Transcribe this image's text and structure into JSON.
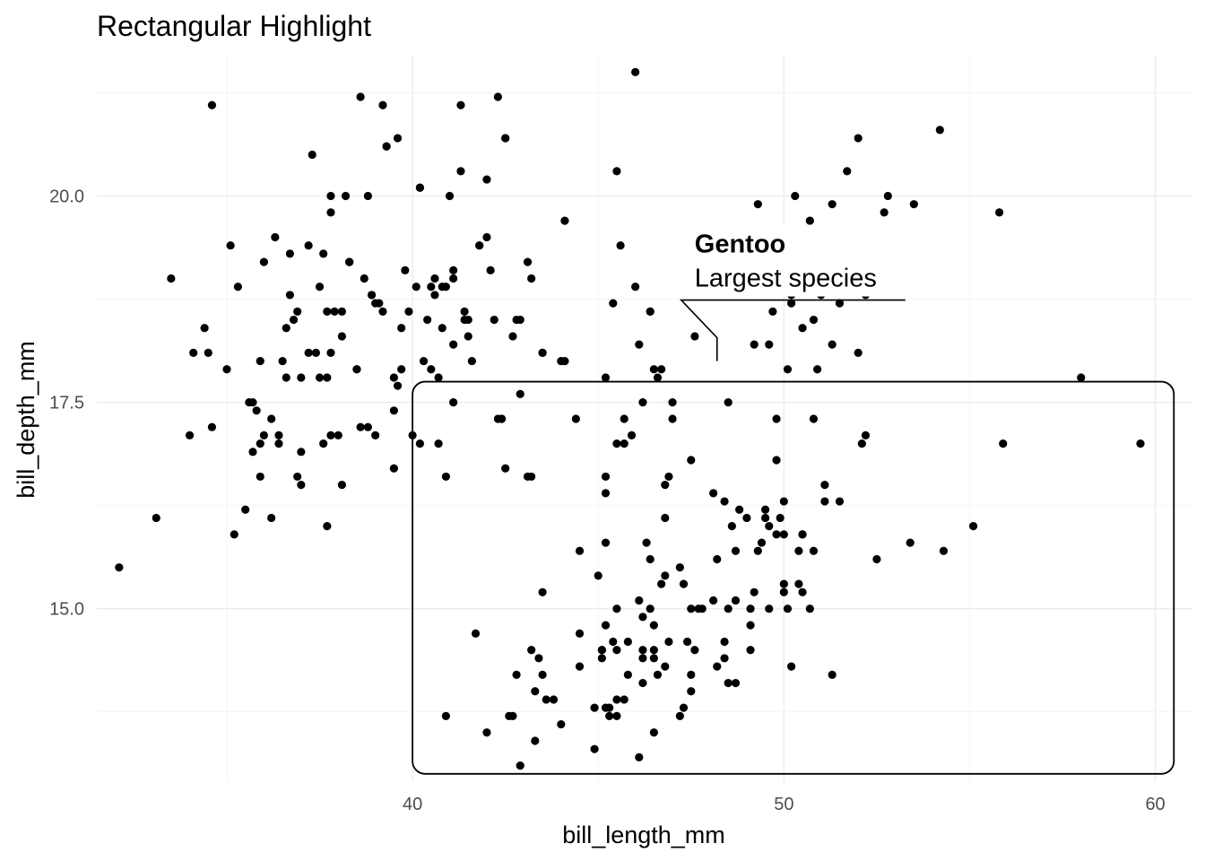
{
  "chart_data": {
    "type": "scatter",
    "title": "Rectangular Highlight",
    "xlabel": "bill_length_mm",
    "ylabel": "bill_depth_mm",
    "xlim": [
      31.5,
      61
    ],
    "ylim": [
      12.9,
      21.7
    ],
    "x_ticks": [
      40,
      50,
      60
    ],
    "x_tick_labels": [
      "40",
      "50",
      "60"
    ],
    "y_ticks": [
      15.0,
      17.5,
      20.0
    ],
    "y_tick_labels": [
      "15.0",
      "17.5",
      "20.0"
    ],
    "grid": true,
    "highlight_rect": {
      "x": [
        40.0,
        60.5
      ],
      "y": [
        13.0,
        17.75
      ]
    },
    "annotation": {
      "title": "Gentoo",
      "label": "Largest species",
      "point": {
        "x": 48.2,
        "y": 18.0
      }
    },
    "points": [
      [
        32.1,
        15.5
      ],
      [
        33.1,
        16.1
      ],
      [
        33.5,
        19.0
      ],
      [
        34.0,
        17.1
      ],
      [
        34.1,
        18.1
      ],
      [
        34.4,
        18.4
      ],
      [
        34.5,
        18.1
      ],
      [
        34.6,
        21.1
      ],
      [
        34.6,
        17.2
      ],
      [
        35.0,
        17.9
      ],
      [
        35.1,
        19.4
      ],
      [
        35.3,
        18.9
      ],
      [
        35.2,
        15.9
      ],
      [
        35.5,
        16.2
      ],
      [
        35.6,
        17.5
      ],
      [
        35.7,
        17.5
      ],
      [
        35.9,
        17.0
      ],
      [
        35.9,
        16.6
      ],
      [
        35.9,
        18.0
      ],
      [
        36.0,
        19.2
      ],
      [
        36.2,
        17.3
      ],
      [
        36.2,
        16.1
      ],
      [
        36.3,
        19.5
      ],
      [
        36.4,
        17.0
      ],
      [
        36.4,
        17.1
      ],
      [
        36.5,
        18.0
      ],
      [
        36.6,
        18.4
      ],
      [
        36.7,
        18.8
      ],
      [
        36.8,
        18.5
      ],
      [
        36.9,
        18.6
      ],
      [
        37.0,
        17.8
      ],
      [
        37.0,
        16.5
      ],
      [
        37.2,
        19.4
      ],
      [
        37.3,
        20.5
      ],
      [
        37.4,
        18.1
      ],
      [
        37.5,
        18.9
      ],
      [
        37.6,
        19.3
      ],
      [
        37.7,
        18.6
      ],
      [
        37.7,
        16.0
      ],
      [
        37.8,
        20.0
      ],
      [
        37.8,
        18.1
      ],
      [
        37.8,
        17.1
      ],
      [
        37.9,
        18.6
      ],
      [
        38.0,
        17.1
      ],
      [
        38.1,
        16.5
      ],
      [
        38.1,
        18.6
      ],
      [
        38.2,
        20.0
      ],
      [
        38.3,
        19.2
      ],
      [
        38.5,
        17.9
      ],
      [
        38.6,
        21.2
      ],
      [
        38.7,
        19.0
      ],
      [
        38.8,
        20.0
      ],
      [
        38.8,
        17.2
      ],
      [
        38.9,
        18.8
      ],
      [
        39.0,
        17.1
      ],
      [
        39.1,
        18.7
      ],
      [
        39.2,
        21.1
      ],
      [
        39.3,
        20.6
      ],
      [
        39.5,
        17.8
      ],
      [
        39.5,
        16.7
      ],
      [
        39.6,
        17.7
      ],
      [
        39.7,
        18.4
      ],
      [
        39.8,
        19.1
      ],
      [
        40.1,
        18.9
      ],
      [
        40.2,
        20.1
      ],
      [
        40.3,
        18.0
      ],
      [
        40.5,
        17.9
      ],
      [
        40.6,
        19.0
      ],
      [
        40.7,
        17.0
      ],
      [
        40.8,
        18.4
      ],
      [
        40.9,
        16.6
      ],
      [
        41.0,
        20.0
      ],
      [
        41.1,
        18.2
      ],
      [
        41.3,
        21.1
      ],
      [
        41.4,
        18.5
      ],
      [
        41.5,
        18.3
      ],
      [
        41.6,
        18.0
      ],
      [
        41.8,
        19.4
      ],
      [
        42.0,
        20.2
      ],
      [
        42.2,
        18.5
      ],
      [
        42.3,
        21.2
      ],
      [
        42.5,
        20.7
      ],
      [
        42.7,
        18.3
      ],
      [
        42.8,
        18.5
      ],
      [
        42.9,
        17.6
      ],
      [
        36.6,
        17.8
      ],
      [
        37.2,
        18.1
      ],
      [
        38.9,
        18.8
      ],
      [
        39.7,
        17.9
      ],
      [
        40.6,
        18.8
      ],
      [
        36.9,
        16.6
      ],
      [
        37.5,
        17.8
      ],
      [
        38.1,
        18.3
      ],
      [
        39.0,
        18.7
      ],
      [
        41.1,
        19.1
      ],
      [
        41.1,
        17.5
      ],
      [
        40.7,
        17.8
      ],
      [
        42.4,
        17.3
      ],
      [
        43.2,
        19.0
      ],
      [
        43.5,
        18.1
      ],
      [
        44.1,
        19.7
      ],
      [
        43.1,
        19.2
      ],
      [
        41.5,
        18.5
      ],
      [
        40.9,
        18.9
      ],
      [
        42.0,
        19.5
      ],
      [
        39.6,
        20.7
      ],
      [
        41.3,
        20.3
      ],
      [
        38.6,
        17.2
      ],
      [
        35.7,
        16.9
      ],
      [
        44.0,
        18.0
      ],
      [
        37.6,
        17.0
      ],
      [
        36.0,
        17.1
      ],
      [
        42.3,
        17.3
      ],
      [
        43.1,
        16.6
      ],
      [
        40.5,
        18.9
      ],
      [
        38.5,
        17.9
      ],
      [
        37.7,
        17.8
      ],
      [
        37.0,
        16.9
      ],
      [
        39.2,
        18.6
      ],
      [
        41.4,
        18.6
      ],
      [
        42.1,
        19.1
      ],
      [
        42.9,
        18.5
      ],
      [
        35.8,
        17.4
      ],
      [
        36.7,
        19.3
      ],
      [
        41.8,
        19.4
      ],
      [
        40.4,
        18.5
      ],
      [
        39.9,
        18.6
      ],
      [
        40.0,
        17.1
      ],
      [
        39.5,
        17.4
      ],
      [
        38.3,
        19.2
      ],
      [
        40.2,
        17.0
      ],
      [
        40.8,
        18.9
      ],
      [
        46.5,
        17.9
      ],
      [
        50.0,
        19.5
      ],
      [
        51.3,
        19.2
      ],
      [
        45.4,
        18.7
      ],
      [
        52.7,
        19.8
      ],
      [
        45.2,
        17.8
      ],
      [
        46.1,
        18.2
      ],
      [
        51.3,
        18.2
      ],
      [
        46.0,
        18.9
      ],
      [
        51.3,
        19.9
      ],
      [
        46.6,
        17.8
      ],
      [
        51.7,
        20.3
      ],
      [
        47.0,
        17.3
      ],
      [
        52.0,
        18.1
      ],
      [
        45.9,
        17.1
      ],
      [
        50.5,
        19.6
      ],
      [
        50.3,
        20.0
      ],
      [
        58.0,
        17.8
      ],
      [
        46.4,
        18.6
      ],
      [
        49.2,
        18.2
      ],
      [
        42.4,
        17.3
      ],
      [
        48.5,
        17.5
      ],
      [
        43.2,
        16.6
      ],
      [
        50.6,
        19.4
      ],
      [
        46.7,
        17.9
      ],
      [
        52.0,
        19.0
      ],
      [
        50.5,
        18.4
      ],
      [
        49.5,
        19.0
      ],
      [
        46.4,
        18.6
      ],
      [
        52.8,
        20.0
      ],
      [
        54.2,
        20.8
      ],
      [
        42.5,
        16.7
      ],
      [
        51.0,
        18.8
      ],
      [
        49.7,
        18.6
      ],
      [
        47.5,
        16.8
      ],
      [
        47.6,
        18.3
      ],
      [
        52.0,
        20.7
      ],
      [
        46.9,
        16.6
      ],
      [
        53.5,
        19.9
      ],
      [
        49.0,
        19.5
      ],
      [
        46.2,
        17.5
      ],
      [
        50.9,
        19.1
      ],
      [
        45.5,
        17.0
      ],
      [
        50.9,
        17.9
      ],
      [
        50.8,
        18.5
      ],
      [
        50.1,
        17.9
      ],
      [
        49.0,
        19.6
      ],
      [
        51.5,
        18.7
      ],
      [
        49.8,
        17.3
      ],
      [
        48.1,
        16.4
      ],
      [
        51.4,
        19.0
      ],
      [
        45.7,
        17.3
      ],
      [
        50.7,
        19.7
      ],
      [
        42.5,
        20.7
      ],
      [
        52.2,
        18.8
      ],
      [
        45.2,
        16.6
      ],
      [
        49.3,
        19.9
      ],
      [
        50.2,
        18.8
      ],
      [
        45.6,
        19.4
      ],
      [
        51.9,
        19.5
      ],
      [
        46.8,
        16.5
      ],
      [
        45.7,
        17.0
      ],
      [
        55.8,
        19.8
      ],
      [
        43.5,
        18.1
      ],
      [
        49.6,
        18.2
      ],
      [
        50.8,
        19.0
      ],
      [
        50.2,
        18.7
      ],
      [
        45.5,
        20.3
      ],
      [
        46.1,
        13.2
      ],
      [
        50.0,
        16.3
      ],
      [
        48.7,
        14.1
      ],
      [
        50.0,
        15.2
      ],
      [
        47.6,
        14.5
      ],
      [
        46.5,
        13.5
      ],
      [
        45.4,
        14.6
      ],
      [
        46.7,
        15.3
      ],
      [
        43.3,
        13.4
      ],
      [
        46.8,
        15.4
      ],
      [
        40.9,
        13.7
      ],
      [
        49.0,
        16.1
      ],
      [
        45.5,
        13.7
      ],
      [
        48.4,
        14.6
      ],
      [
        45.8,
        14.6
      ],
      [
        49.3,
        15.7
      ],
      [
        42.0,
        13.5
      ],
      [
        49.2,
        15.2
      ],
      [
        46.2,
        14.5
      ],
      [
        48.7,
        15.1
      ],
      [
        50.2,
        14.3
      ],
      [
        45.1,
        14.5
      ],
      [
        46.5,
        14.5
      ],
      [
        46.3,
        15.8
      ],
      [
        42.9,
        13.1
      ],
      [
        46.1,
        15.1
      ],
      [
        44.5,
        14.3
      ],
      [
        47.8,
        15.0
      ],
      [
        48.2,
        14.3
      ],
      [
        50.0,
        15.3
      ],
      [
        47.3,
        15.3
      ],
      [
        42.8,
        14.2
      ],
      [
        45.1,
        14.5
      ],
      [
        59.6,
        17.0
      ],
      [
        49.1,
        14.8
      ],
      [
        48.4,
        16.3
      ],
      [
        42.6,
        13.7
      ],
      [
        44.4,
        17.3
      ],
      [
        44.0,
        13.6
      ],
      [
        48.7,
        15.7
      ],
      [
        42.7,
        13.7
      ],
      [
        49.6,
        16.0
      ],
      [
        45.3,
        13.7
      ],
      [
        49.6,
        15.0
      ],
      [
        50.5,
        15.9
      ],
      [
        43.6,
        13.9
      ],
      [
        45.5,
        13.9
      ],
      [
        50.5,
        15.9
      ],
      [
        44.9,
        13.3
      ],
      [
        45.2,
        15.8
      ],
      [
        46.6,
        14.2
      ],
      [
        48.5,
        14.1
      ],
      [
        45.1,
        14.4
      ],
      [
        50.1,
        15.0
      ],
      [
        46.5,
        14.4
      ],
      [
        45.0,
        15.4
      ],
      [
        43.8,
        13.9
      ],
      [
        45.5,
        15.0
      ],
      [
        43.2,
        14.5
      ],
      [
        50.4,
        15.3
      ],
      [
        45.3,
        13.8
      ],
      [
        46.2,
        14.9
      ],
      [
        45.7,
        13.9
      ],
      [
        54.3,
        15.7
      ],
      [
        45.8,
        14.2
      ],
      [
        49.8,
        16.8
      ],
      [
        46.2,
        14.4
      ],
      [
        49.5,
        16.2
      ],
      [
        43.5,
        14.2
      ],
      [
        50.7,
        15.0
      ],
      [
        47.7,
        15.0
      ],
      [
        46.4,
        15.6
      ],
      [
        48.2,
        15.6
      ],
      [
        46.5,
        14.8
      ],
      [
        46.4,
        15.0
      ],
      [
        48.6,
        16.0
      ],
      [
        47.5,
        14.2
      ],
      [
        51.1,
        16.3
      ],
      [
        45.2,
        13.8
      ],
      [
        45.2,
        16.4
      ],
      [
        49.1,
        14.5
      ],
      [
        52.5,
        15.6
      ],
      [
        47.4,
        14.6
      ],
      [
        50.0,
        15.9
      ],
      [
        44.9,
        13.8
      ],
      [
        50.8,
        17.3
      ],
      [
        43.4,
        14.4
      ],
      [
        51.3,
        14.2
      ],
      [
        47.5,
        14.0
      ],
      [
        52.1,
        17.0
      ],
      [
        47.5,
        15.0
      ],
      [
        52.2,
        17.1
      ],
      [
        45.5,
        14.5
      ],
      [
        49.5,
        16.1
      ],
      [
        44.5,
        14.7
      ],
      [
        50.8,
        15.7
      ],
      [
        49.4,
        15.8
      ],
      [
        46.9,
        14.6
      ],
      [
        48.4,
        14.4
      ],
      [
        51.1,
        16.5
      ],
      [
        48.5,
        15.0
      ],
      [
        55.9,
        17.0
      ],
      [
        47.2,
        15.5
      ],
      [
        49.1,
        15.0
      ],
      [
        47.3,
        13.8
      ],
      [
        46.8,
        16.1
      ],
      [
        41.7,
        14.7
      ],
      [
        53.4,
        15.8
      ],
      [
        43.3,
        14.0
      ],
      [
        48.1,
        15.1
      ],
      [
        50.5,
        15.2
      ],
      [
        49.8,
        15.9
      ],
      [
        43.5,
        15.2
      ],
      [
        51.5,
        16.3
      ],
      [
        46.2,
        14.1
      ],
      [
        55.1,
        16.0
      ],
      [
        44.5,
        15.7
      ],
      [
        48.8,
        16.2
      ],
      [
        47.2,
        13.7
      ],
      [
        46.8,
        14.3
      ],
      [
        50.4,
        15.7
      ],
      [
        45.2,
        14.8
      ],
      [
        49.9,
        16.1
      ],
      [
        47.0,
        17.5
      ],
      [
        46.0,
        21.5
      ],
      [
        39.3,
        20.6
      ],
      [
        37.8,
        19.8
      ],
      [
        41.1,
        19.0
      ],
      [
        40.2,
        20.1
      ],
      [
        44.1,
        18.0
      ]
    ]
  }
}
